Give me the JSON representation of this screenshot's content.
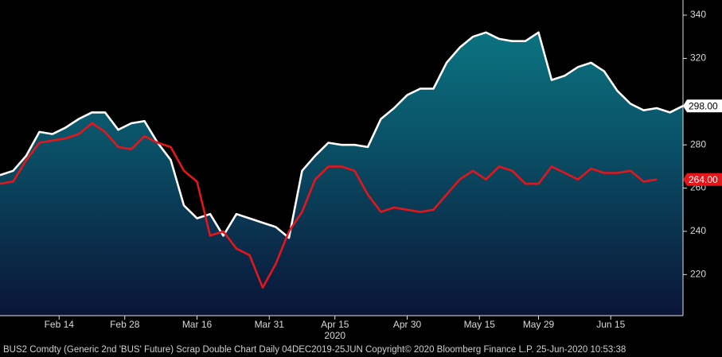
{
  "chart_data": {
    "type": "line",
    "footer": "BUS2 Comdty (Generic 2nd 'BUS' Future) Scrap Double Chart  Daily 04DEC2019-25JUN  Copyright© 2020 Bloomberg Finance L.P.  25-Jun-2020 10:53:38",
    "x_year_label": "2020",
    "x": [
      0,
      2,
      4,
      6,
      8,
      10,
      12,
      14,
      16,
      18,
      20,
      22,
      24,
      26,
      28,
      30,
      32,
      34,
      36,
      38,
      40,
      42,
      44,
      46,
      48,
      50,
      52,
      54,
      56,
      58,
      60,
      62,
      64,
      66,
      68,
      70,
      72,
      74,
      76,
      78,
      80,
      82,
      84,
      86,
      88,
      90,
      92,
      94,
      96,
      98,
      100,
      102,
      104
    ],
    "xlim": [
      0,
      104
    ],
    "xticks": [
      {
        "value": 9,
        "label": "Feb 14"
      },
      {
        "value": 19,
        "label": "Feb 28"
      },
      {
        "value": 30,
        "label": "Mar 16"
      },
      {
        "value": 41,
        "label": "Mar 31"
      },
      {
        "value": 51,
        "label": "Apr 15"
      },
      {
        "value": 62,
        "label": "Apr 30"
      },
      {
        "value": 73,
        "label": "May 15"
      },
      {
        "value": 82,
        "label": "May 29"
      },
      {
        "value": 93,
        "label": "Jun 15"
      }
    ],
    "ylim": [
      201,
      347
    ],
    "yticks": [
      220,
      240,
      260,
      280,
      320,
      340
    ],
    "series": [
      {
        "color": "#ffffff",
        "fill": true,
        "last_label": "298.00",
        "values": [
          266,
          268,
          275,
          286,
          285,
          288,
          292,
          295,
          295,
          287,
          290,
          291,
          281,
          273,
          252,
          246,
          248,
          238,
          248,
          246,
          244,
          242,
          237,
          268,
          275,
          281,
          280,
          280,
          279,
          292,
          297,
          303,
          306,
          306,
          318,
          325,
          330,
          332,
          329,
          328,
          328,
          332,
          310,
          312,
          316,
          318,
          314,
          305,
          299,
          296,
          297,
          295,
          298
        ]
      },
      {
        "color": "#e3161c",
        "fill": false,
        "last_label": "264.00",
        "values": [
          262,
          263,
          273,
          281,
          282,
          283,
          285,
          290,
          286,
          279,
          278,
          284,
          281,
          279,
          268,
          263,
          238,
          240,
          232,
          229,
          214,
          225,
          240,
          249,
          264,
          270,
          270,
          268,
          257,
          249,
          251,
          250,
          249,
          250,
          257,
          264,
          268,
          264,
          270,
          268,
          262,
          262,
          270,
          267,
          264,
          269,
          267,
          267,
          268,
          263,
          264,
          null,
          null
        ]
      }
    ]
  }
}
